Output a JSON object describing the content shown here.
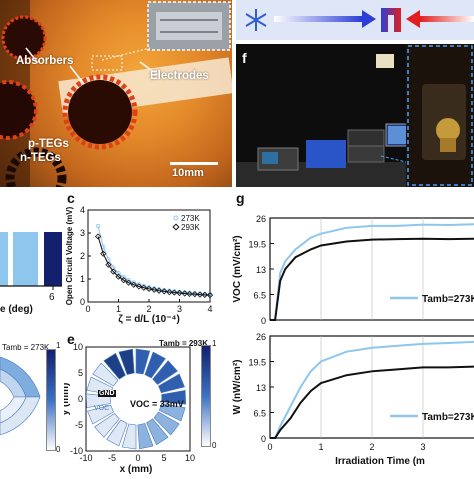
{
  "panel_a": {
    "absorbers_label": "Absorbers",
    "electrodes_label": "Electrodes",
    "p_tegs_label": "p-TEGs",
    "n_tegs_label": "n-TEGs",
    "scale_label": "10mm"
  },
  "panel_b": {
    "xlabel_fragment": "e (deg)",
    "xtick_last": "6",
    "bar_colors": [
      "#8fc6ee",
      "#12206e"
    ]
  },
  "panel_c": {
    "letter": "c",
    "chart_data": {
      "type": "scatter",
      "xlabel": "ζ = d/L (10⁻⁴)",
      "ylabel": "Open Circuit Voltage (mV)",
      "xlim": [
        0,
        4
      ],
      "ylim": [
        0,
        4
      ],
      "xticks": [
        "0",
        "1",
        "2",
        "3",
        "4"
      ],
      "yticks": [
        "0",
        "1",
        "2",
        "3",
        "4"
      ],
      "series": [
        {
          "name": "273K",
          "color": "#8fc6ee",
          "x": [
            0.33,
            0.5,
            0.67,
            0.83,
            1.0,
            1.17,
            1.33,
            1.5,
            1.67,
            1.83,
            2.0,
            2.17,
            2.33,
            2.5,
            2.67,
            2.83,
            3.0,
            3.17,
            3.33,
            3.5,
            3.67,
            3.83,
            4.0
          ],
          "y": [
            3.3,
            2.4,
            1.85,
            1.5,
            1.25,
            1.08,
            0.95,
            0.85,
            0.77,
            0.7,
            0.64,
            0.59,
            0.55,
            0.52,
            0.49,
            0.46,
            0.44,
            0.42,
            0.4,
            0.38,
            0.36,
            0.35,
            0.34
          ]
        },
        {
          "name": "293K",
          "color": "#111111",
          "x": [
            0.33,
            0.5,
            0.67,
            0.83,
            1.0,
            1.17,
            1.33,
            1.5,
            1.67,
            1.83,
            2.0,
            2.17,
            2.33,
            2.5,
            2.67,
            2.83,
            3.0,
            3.17,
            3.33,
            3.5,
            3.67,
            3.83,
            4.0
          ],
          "y": [
            2.85,
            2.1,
            1.62,
            1.32,
            1.1,
            0.95,
            0.84,
            0.75,
            0.68,
            0.62,
            0.57,
            0.53,
            0.49,
            0.46,
            0.43,
            0.41,
            0.39,
            0.37,
            0.35,
            0.34,
            0.32,
            0.31,
            0.3
          ]
        }
      ]
    }
  },
  "panel_d": {
    "tamb_label": "Tamb = 273K",
    "colorbar_top": "1",
    "colorbar_bottom": "0"
  },
  "panel_e": {
    "letter": "e",
    "tamb_label": "Tamb = 293K",
    "gnd_label": "GND",
    "voc_label": "VOC",
    "voc_value": "VOC = 33mV",
    "ylabel": "y (mm)",
    "xlabel": "x (mm)",
    "xticks": [
      "-10",
      "-5",
      "0",
      "5",
      "10"
    ],
    "yticks": [
      "10",
      "5",
      "0",
      "-5",
      "-10"
    ],
    "colorbar_top": "1",
    "colorbar_bottom": "0"
  },
  "panel_f": {
    "letter": "f"
  },
  "panel_g": {
    "letter": "g",
    "chart_data": [
      {
        "type": "line",
        "ylabel": "VOC (mV/cm²)",
        "yticks": [
          "26",
          "19.5",
          "13",
          "6.5",
          "0"
        ],
        "ylim": [
          0,
          26
        ],
        "legend": "Tamb=273K",
        "series": [
          {
            "name": "273K",
            "color": "#8fc6ee",
            "x": [
              0,
              0.1,
              0.2,
              0.3,
              0.5,
              0.8,
              1.0,
              1.5,
              2.0,
              2.5,
              3.0,
              3.5,
              4.0
            ],
            "y": [
              0,
              0,
              12,
              15,
              18,
              21,
              22,
              23.5,
              24,
              24,
              24.3,
              24.2,
              24.4
            ]
          },
          {
            "name": "293K",
            "color": "#111111",
            "x": [
              0,
              0.1,
              0.2,
              0.3,
              0.5,
              0.8,
              1.0,
              1.5,
              2.0,
              2.5,
              3.0,
              3.5,
              4.0
            ],
            "y": [
              0,
              0,
              10,
              13,
              16,
              18,
              19,
              20,
              20.5,
              20.6,
              20.7,
              20.6,
              20.7
            ]
          }
        ]
      },
      {
        "type": "line",
        "ylabel": "W (nW/cm²)",
        "yticks": [
          "26",
          "19.5",
          "13",
          "6.5",
          "0"
        ],
        "ylim": [
          0,
          26
        ],
        "legend": "Tamb=273K",
        "xlabel": "Irradiation Time (m",
        "xticks": [
          "0",
          "1",
          "2",
          "3"
        ],
        "series": [
          {
            "name": "273K",
            "color": "#8fc6ee",
            "x": [
              0,
              0.1,
              0.2,
              0.4,
              0.6,
              0.8,
              1.0,
              1.5,
              2.0,
              2.5,
              3.0,
              3.5,
              4.0
            ],
            "y": [
              0,
              0,
              3,
              8,
              13,
              17,
              19.5,
              22,
              23,
              23.5,
              24,
              24.2,
              24.5
            ]
          },
          {
            "name": "293K",
            "color": "#111111",
            "x": [
              0,
              0.1,
              0.2,
              0.4,
              0.6,
              0.8,
              1.0,
              1.5,
              2.0,
              2.5,
              3.0,
              3.5,
              4.0
            ],
            "y": [
              0,
              0,
              2,
              5,
              9,
              12,
              14,
              16,
              17,
              17.5,
              18,
              18,
              18.2
            ]
          }
        ]
      }
    ]
  },
  "legend_c_273": "273K",
  "legend_c_293": "293K"
}
